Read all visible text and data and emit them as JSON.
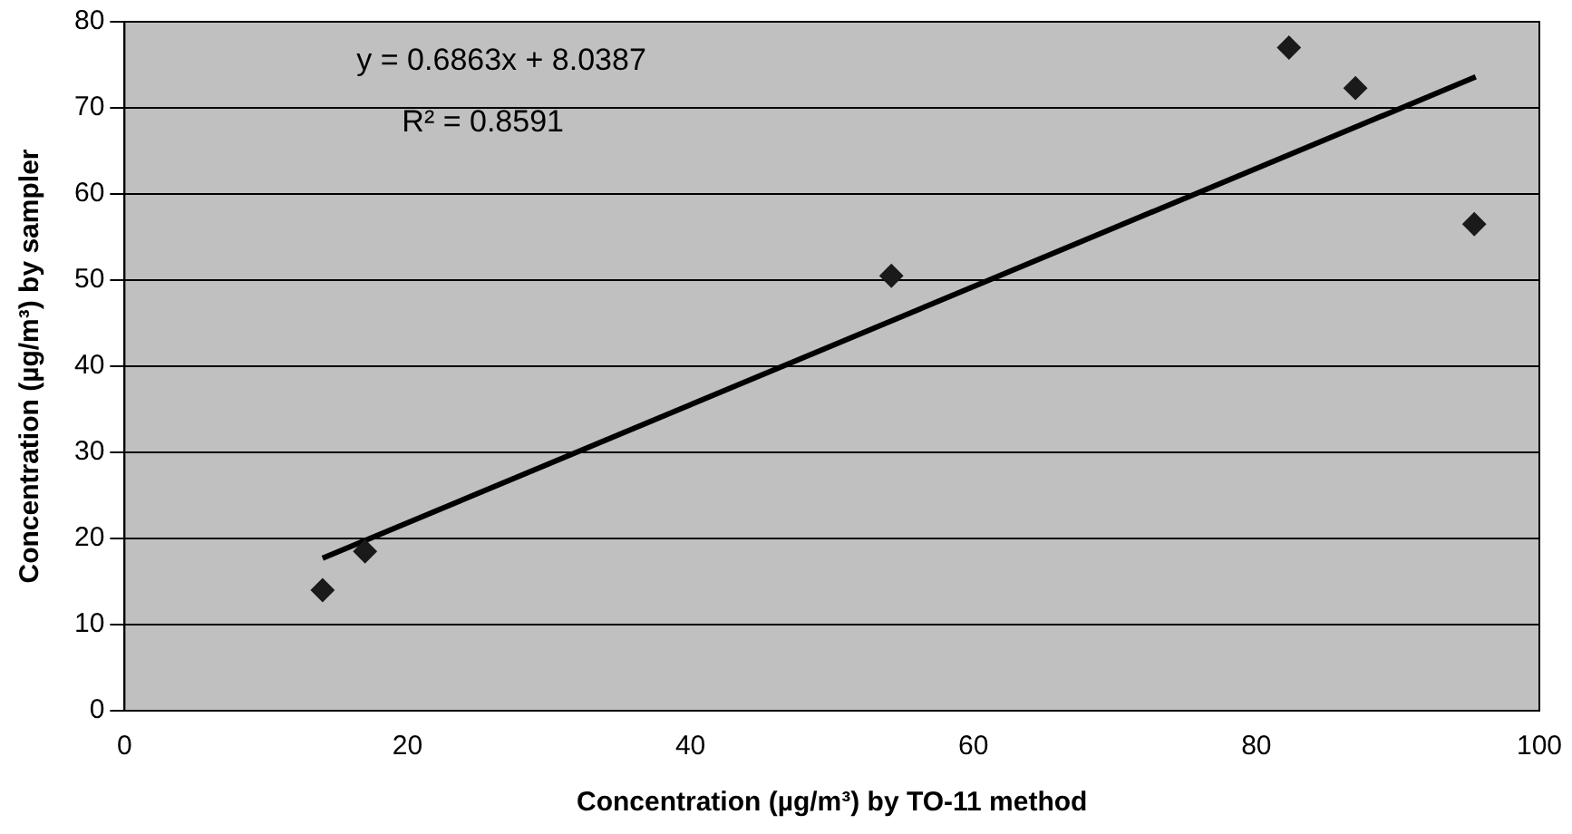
{
  "chart_data": {
    "type": "scatter",
    "xlabel": "Concentration (µg/m³) by TO-11 method",
    "ylabel": "Concentration (µg/m³) by sampler",
    "xlim": [
      0,
      100
    ],
    "xticks": [
      0,
      20,
      40,
      60,
      80,
      100
    ],
    "ylim": [
      0,
      80
    ],
    "yticks": [
      0,
      10,
      20,
      30,
      40,
      50,
      60,
      70,
      80
    ],
    "grid": "y",
    "legend": false,
    "marker": "diamond",
    "series": [
      {
        "color": "#1a1a1a",
        "x": [
          14,
          17,
          54.2,
          82.3,
          87,
          95.4
        ],
        "values": [
          14,
          18.5,
          50.5,
          77,
          72.3,
          56.5
        ]
      },
      {
        "type": "line",
        "color": "#000000",
        "marker": "none",
        "line_style": "solid",
        "x": [
          14,
          95.5
        ],
        "values": [
          17.7,
          73.6
        ]
      }
    ],
    "annotations": [
      "y = 0.6863x + 8.0387",
      "R² = 0.8591"
    ]
  }
}
